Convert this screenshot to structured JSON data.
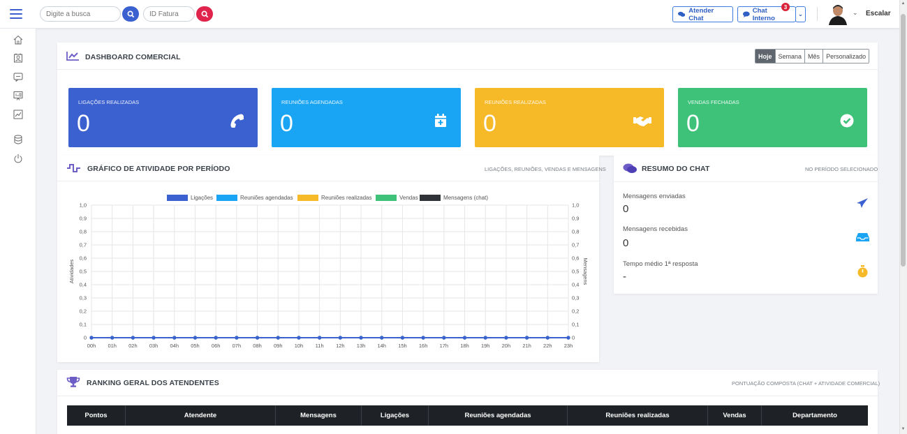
{
  "topbar": {
    "search_placeholder": "Digite a busca",
    "invoice_placeholder": "ID Fatura",
    "attend_chat_label": "Atender Chat",
    "internal_chat_label": "Chat Interno",
    "internal_chat_badge": "3",
    "user_name": "Escalar"
  },
  "dashboard": {
    "title": "DASHBOARD COMERCIAL",
    "periods": [
      "Hoje",
      "Semana",
      "Mês",
      "Personalizado"
    ],
    "active_period": "Hoje"
  },
  "stats": [
    {
      "label": "LIGAÇÕES REALIZADAS",
      "value": "0",
      "color": "#3b61d1",
      "icon": "phone-icon"
    },
    {
      "label": "REUNIÕES AGENDADAS",
      "value": "0",
      "color": "#1aa5f4",
      "icon": "calendar-plus-icon"
    },
    {
      "label": "REUNIÕES REALIZADAS",
      "value": "0",
      "color": "#f6b928",
      "icon": "handshake-icon"
    },
    {
      "label": "VENDAS FECHADAS",
      "value": "0",
      "color": "#3ec27a",
      "icon": "check-circle-icon"
    }
  ],
  "activity": {
    "title": "GRÁFICO DE ATIVIDADE POR PERÍODO",
    "subtitle": "LIGAÇÕES, REUNIÕES, VENDAS E MENSAGENS"
  },
  "chart_data": {
    "type": "line",
    "x": [
      "00h",
      "01h",
      "02h",
      "03h",
      "04h",
      "05h",
      "06h",
      "07h",
      "08h",
      "09h",
      "10h",
      "11h",
      "12h",
      "13h",
      "14h",
      "15h",
      "16h",
      "17h",
      "18h",
      "19h",
      "20h",
      "21h",
      "22h",
      "23h"
    ],
    "series": [
      {
        "name": "Ligações",
        "color": "#3b61d1",
        "values": [
          0,
          0,
          0,
          0,
          0,
          0,
          0,
          0,
          0,
          0,
          0,
          0,
          0,
          0,
          0,
          0,
          0,
          0,
          0,
          0,
          0,
          0,
          0,
          0
        ]
      },
      {
        "name": "Reuniões agendadas",
        "color": "#1aa5f4",
        "values": [
          0,
          0,
          0,
          0,
          0,
          0,
          0,
          0,
          0,
          0,
          0,
          0,
          0,
          0,
          0,
          0,
          0,
          0,
          0,
          0,
          0,
          0,
          0,
          0
        ]
      },
      {
        "name": "Reuniões realizadas",
        "color": "#f6b928",
        "values": [
          0,
          0,
          0,
          0,
          0,
          0,
          0,
          0,
          0,
          0,
          0,
          0,
          0,
          0,
          0,
          0,
          0,
          0,
          0,
          0,
          0,
          0,
          0,
          0
        ]
      },
      {
        "name": "Vendas",
        "color": "#3ec27a",
        "values": [
          0,
          0,
          0,
          0,
          0,
          0,
          0,
          0,
          0,
          0,
          0,
          0,
          0,
          0,
          0,
          0,
          0,
          0,
          0,
          0,
          0,
          0,
          0,
          0
        ]
      },
      {
        "name": "Mensagens (chat)",
        "color": "#2f3237",
        "values": [
          0,
          0,
          0,
          0,
          0,
          0,
          0,
          0,
          0,
          0,
          0,
          0,
          0,
          0,
          0,
          0,
          0,
          0,
          0,
          0,
          0,
          0,
          0,
          0
        ]
      }
    ],
    "ylabel": "Atividades",
    "y2label": "Mensagens",
    "ylim": [
      0,
      1
    ],
    "y_ticks": [
      "0",
      "0,1",
      "0,2",
      "0,3",
      "0,4",
      "0,5",
      "0,6",
      "0,7",
      "0,8",
      "0,9",
      "1,0"
    ],
    "grid": true,
    "legend": "top"
  },
  "chat": {
    "title": "RESUMO DO CHAT",
    "subtitle": "NO PERÍODO SELECIONADO",
    "items": [
      {
        "label": "Mensagens enviadas",
        "value": "0",
        "icon": "paper-plane-icon",
        "color": "#3b61d1"
      },
      {
        "label": "Mensagens recebidas",
        "value": "0",
        "icon": "inbox-icon",
        "color": "#1aa5f4"
      },
      {
        "label": "Tempo médio 1ª resposta",
        "value": "-",
        "icon": "stopwatch-icon",
        "color": "#f6b928"
      }
    ]
  },
  "ranking": {
    "title": "RANKING GERAL DOS ATENDENTES",
    "subtitle": "PONTUAÇÃO COMPOSTA (CHAT + ATIVIDADE COMERCIAL)",
    "columns": [
      "Pontos",
      "Atendente",
      "Mensagens",
      "Ligações",
      "Reuniões agendadas",
      "Reuniões realizadas",
      "Vendas",
      "Departamento"
    ]
  }
}
